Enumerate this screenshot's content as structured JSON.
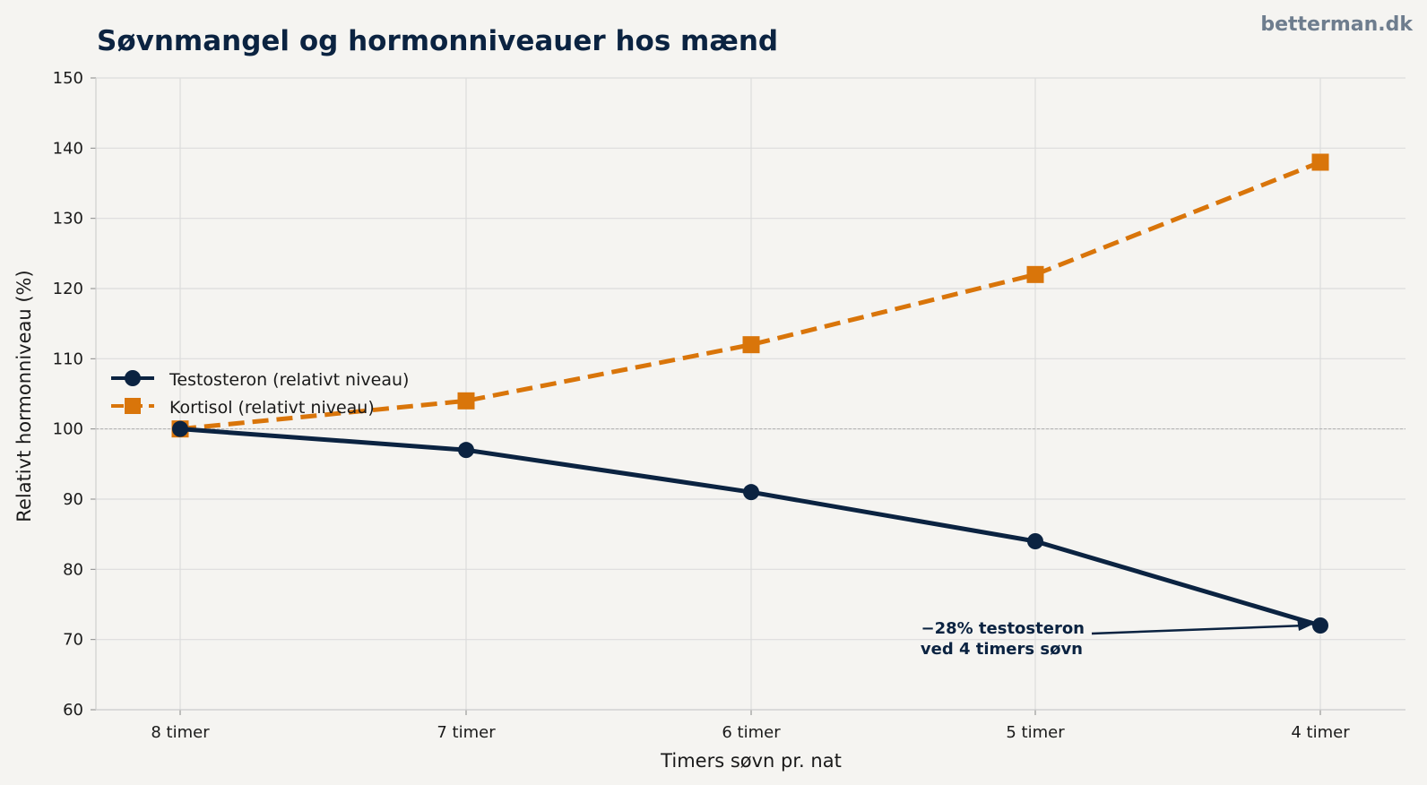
{
  "watermark": "betterman.dk",
  "chart_data": {
    "type": "line",
    "title": "Søvnmangel og hormonniveauer hos mænd",
    "xlabel": "Timers søvn pr. nat",
    "ylabel": "Relativt hormonniveau (%)",
    "categories": [
      "8 timer",
      "7 timer",
      "6 timer",
      "5 timer",
      "4 timer"
    ],
    "ylim": [
      60,
      150
    ],
    "yticks": [
      60,
      70,
      80,
      90,
      100,
      110,
      120,
      130,
      140,
      150
    ],
    "grid": true,
    "reference_line": 100,
    "legend_position": "center-left",
    "series": [
      {
        "name": "Testosteron (relativt niveau)",
        "values": [
          100,
          97,
          91,
          84,
          72
        ],
        "color": "#0b2341",
        "marker": "circle",
        "style": "solid"
      },
      {
        "name": "Kortisol (relativt niveau)",
        "values": [
          100,
          104,
          112,
          122,
          138
        ],
        "color": "#d9750a",
        "marker": "square",
        "style": "dashed"
      }
    ],
    "annotation": {
      "lines": [
        "−28% testosteron",
        "ved 4 timers søvn"
      ],
      "category": "4 timer",
      "value": 72
    }
  }
}
